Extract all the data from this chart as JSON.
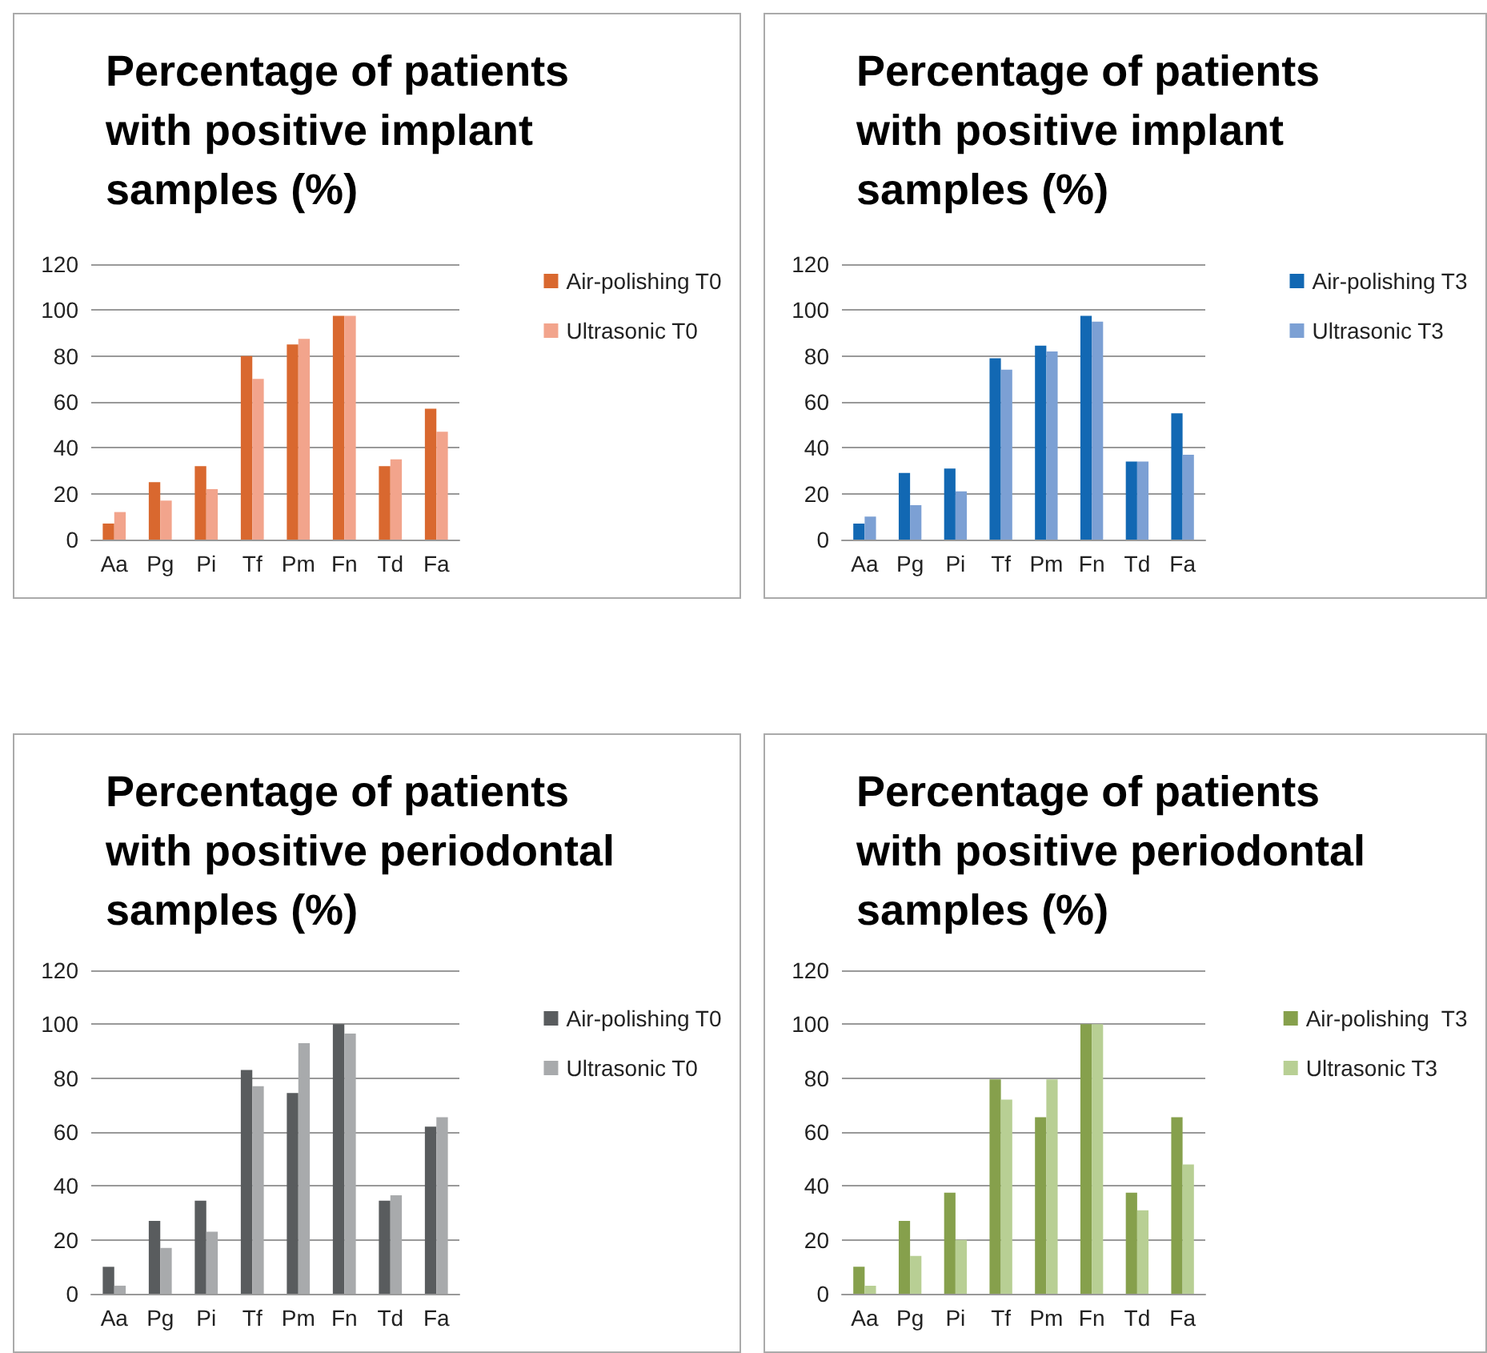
{
  "chart_data": [
    {
      "type": "bar",
      "title": "Percentage of patients with positive implant samples (%)",
      "categories": [
        "Aa",
        "Pg",
        "Pi",
        "Tf",
        "Pm",
        "Fn",
        "Td",
        "Fa"
      ],
      "ylim": [
        0,
        120
      ],
      "yticks": [
        0,
        20,
        40,
        60,
        80,
        100,
        120
      ],
      "grid": "y",
      "legend": "right",
      "series": [
        {
          "name": "Air-polishing T0",
          "color": "#d9682f",
          "values": [
            7,
            25,
            32,
            80,
            85,
            97.5,
            32,
            57
          ]
        },
        {
          "name": "Ultrasonic T0",
          "color": "#f2a48c",
          "values": [
            12,
            17,
            22,
            70,
            87.5,
            97.5,
            35,
            47
          ]
        }
      ]
    },
    {
      "type": "bar",
      "title": "Percentage of patients with positive implant samples (%)",
      "categories": [
        "Aa",
        "Pg",
        "Pi",
        "Tf",
        "Pm",
        "Fn",
        "Td",
        "Fa"
      ],
      "ylim": [
        0,
        120
      ],
      "yticks": [
        0,
        20,
        40,
        60,
        80,
        100,
        120
      ],
      "grid": "y",
      "legend": "right",
      "series": [
        {
          "name": "Air-polishing T3",
          "color": "#1268b3",
          "values": [
            7,
            29,
            31,
            79,
            84.5,
            97.5,
            34,
            55
          ]
        },
        {
          "name": "Ultrasonic T3",
          "color": "#7ca0d4",
          "values": [
            10,
            15,
            21,
            74,
            82,
            95,
            34,
            37
          ]
        }
      ]
    },
    {
      "type": "bar",
      "title": "Percentage of patients with positive periodontal samples (%)",
      "categories": [
        "Aa",
        "Pg",
        "Pi",
        "Tf",
        "Pm",
        "Fn",
        "Td",
        "Fa"
      ],
      "ylim": [
        0,
        120
      ],
      "yticks": [
        0,
        20,
        40,
        60,
        80,
        100,
        120
      ],
      "grid": "y",
      "legend": "right",
      "series": [
        {
          "name": "Air-polishing T0",
          "color": "#595c5e",
          "values": [
            10,
            27,
            34.5,
            83,
            74.5,
            100,
            34.5,
            62
          ]
        },
        {
          "name": "Ultrasonic T0",
          "color": "#a8aaac",
          "values": [
            3,
            17,
            23,
            77,
            93,
            96.5,
            36.5,
            65.5
          ]
        }
      ]
    },
    {
      "type": "bar",
      "title": "Percentage of patients with positive periodontal samples (%)",
      "categories": [
        "Aa",
        "Pg",
        "Pi",
        "Tf",
        "Pm",
        "Fn",
        "Td",
        "Fa"
      ],
      "ylim": [
        0,
        120
      ],
      "yticks": [
        0,
        20,
        40,
        60,
        80,
        100,
        120
      ],
      "grid": "y",
      "legend": "right",
      "series": [
        {
          "name": "Air-polishing  T3",
          "color": "#86a04c",
          "values": [
            10,
            27,
            37.5,
            79.5,
            65.5,
            100,
            37.5,
            65.5
          ]
        },
        {
          "name": "Ultrasonic T3",
          "color": "#b8cf94",
          "values": [
            3,
            14,
            20,
            72,
            79.5,
            100,
            31,
            48
          ]
        }
      ]
    }
  ]
}
